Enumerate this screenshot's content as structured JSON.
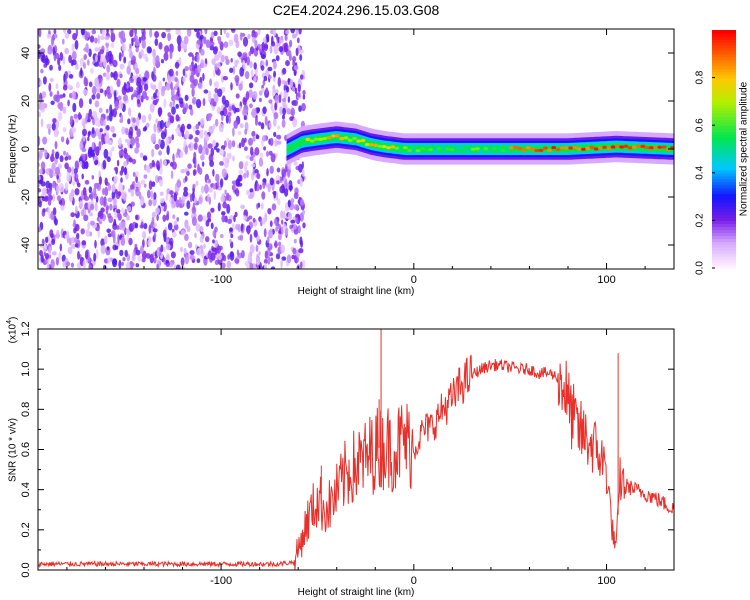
{
  "title": "C2E4.2024.296.15.03.G08",
  "colors": {
    "snr_line": "#e8302a",
    "axis": "#000000",
    "spec_bg": "#ffffff"
  },
  "chart_data": [
    {
      "type": "heatmap",
      "xlabel": "Height of straight line (km)",
      "ylabel": "Frequency (Hz)",
      "xlim": [
        -195,
        135
      ],
      "ylim": [
        -50,
        50
      ],
      "x_ticks": [
        "-100",
        "0",
        "100"
      ],
      "y_ticks": [
        "-40",
        "-20",
        "0",
        "20",
        "40"
      ],
      "colorbar": {
        "label": "Normalized spectral amplitude",
        "range": [
          0,
          1
        ],
        "ticks": [
          "0.0",
          "0.2",
          "0.4",
          "0.6",
          "0.8"
        ],
        "colormap": "rainbow (white-violet-blue-cyan-green-yellow-orange-red)"
      },
      "regions": [
        {
          "x_range": [
            -195,
            -60
          ],
          "frequency_range": [
            -50,
            50
          ],
          "amplitude": "low (0.1-0.3)",
          "pattern": "scattered noise"
        },
        {
          "x_range": [
            -60,
            135
          ],
          "frequency_range": [
            -5,
            5
          ],
          "amplitude": "high (0.5-1.0)",
          "pattern": "narrow band near 0 Hz"
        }
      ],
      "signal_band_center_hz": [
        {
          "x": -65,
          "f": 0
        },
        {
          "x": -58,
          "f": 3
        },
        {
          "x": -50,
          "f": 4
        },
        {
          "x": -40,
          "f": 5
        },
        {
          "x": -30,
          "f": 4
        },
        {
          "x": -22,
          "f": 2
        },
        {
          "x": -15,
          "f": 1
        },
        {
          "x": -5,
          "f": 0
        },
        {
          "x": 10,
          "f": 0
        },
        {
          "x": 40,
          "f": 0
        },
        {
          "x": 80,
          "f": 0
        },
        {
          "x": 105,
          "f": 1
        },
        {
          "x": 135,
          "f": 0
        }
      ]
    },
    {
      "type": "line",
      "xlabel": "Height of straight line (km)",
      "ylabel": "SNR (10 * v/v)",
      "yscale_label": "(x10",
      "yscale_exponent": "4",
      "xlim": [
        -195,
        135
      ],
      "ylim": [
        0,
        1.2
      ],
      "x_ticks": [
        "-100",
        "0",
        "100"
      ],
      "y_ticks": [
        "0.0",
        "0.2",
        "0.4",
        "0.6",
        "0.8",
        "1.0",
        "1.2"
      ],
      "series": [
        {
          "x": [
            -195,
            -150,
            -100,
            -70,
            -62,
            -55,
            -50,
            -45,
            -40,
            -35,
            -30,
            -25,
            -20,
            -15,
            -10,
            -5,
            0,
            5,
            10,
            15,
            20,
            25,
            30,
            35,
            40,
            45,
            50,
            55,
            60,
            65,
            70,
            75,
            78,
            80,
            85,
            90,
            95,
            100,
            103,
            105,
            107,
            110,
            115,
            120,
            125,
            130,
            135
          ],
          "values": [
            0.03,
            0.03,
            0.03,
            0.03,
            0.04,
            0.25,
            0.35,
            0.3,
            0.38,
            0.48,
            0.52,
            0.55,
            0.6,
            0.62,
            0.6,
            0.65,
            0.6,
            0.7,
            0.72,
            0.8,
            0.85,
            0.93,
            0.97,
            1.0,
            1.02,
            1.02,
            1.01,
            1.0,
            1.0,
            0.98,
            0.98,
            0.96,
            0.93,
            0.82,
            0.7,
            0.65,
            0.6,
            0.5,
            0.2,
            0.1,
            0.45,
            0.42,
            0.4,
            0.38,
            0.36,
            0.33,
            0.3
          ]
        }
      ],
      "spikes": [
        {
          "x": -17,
          "y": 1.2
        },
        {
          "x": -18,
          "y": 0.85
        },
        {
          "x": 106,
          "y": 1.08
        },
        {
          "x": -48,
          "y": 0.52
        }
      ]
    }
  ]
}
